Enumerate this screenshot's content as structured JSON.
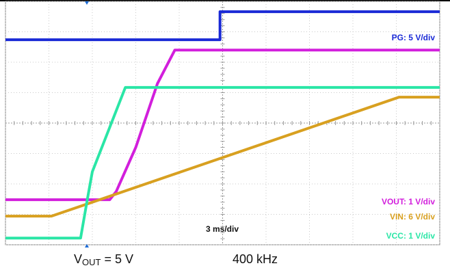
{
  "chart_data": {
    "type": "line",
    "xlim": [
      0,
      10
    ],
    "ylim": [
      0,
      8
    ],
    "xticks": [
      0,
      1,
      2,
      3,
      4,
      5,
      6,
      7,
      8,
      9,
      10
    ],
    "yticks": [
      0,
      1,
      2,
      3,
      4,
      5,
      6,
      7,
      8
    ],
    "grid": true,
    "series": [
      {
        "name": "PG: 5 V/div",
        "color": "#1a2ad6",
        "x": [
          0,
          4.94,
          4.94,
          10
        ],
        "values": [
          6.74,
          6.74,
          7.66,
          7.66
        ]
      },
      {
        "name": "VOUT: 1 V/div",
        "color": "#d21fdc",
        "x": [
          0,
          2.4,
          2.55,
          3.0,
          3.5,
          3.9,
          10
        ],
        "values": [
          1.48,
          1.48,
          1.75,
          3.2,
          5.3,
          6.4,
          6.4
        ]
      },
      {
        "name": "VIN: 6 V/div",
        "color": "#d8a020",
        "x": [
          0,
          1.06,
          9.06,
          10
        ],
        "values": [
          0.94,
          0.94,
          4.85,
          4.85
        ]
      },
      {
        "name": "VCC: 1 V/div",
        "color": "#2ae6a6",
        "x": [
          0,
          1.73,
          1.89,
          2.0,
          2.76,
          10
        ],
        "values": [
          0.22,
          0.22,
          1.53,
          2.4,
          5.17,
          5.17
        ]
      }
    ],
    "timebase": "3 ms/div",
    "caption": {
      "main": "V",
      "sub": "OUT",
      "rest": " = 5 V",
      "freq": "400 kHz"
    }
  }
}
